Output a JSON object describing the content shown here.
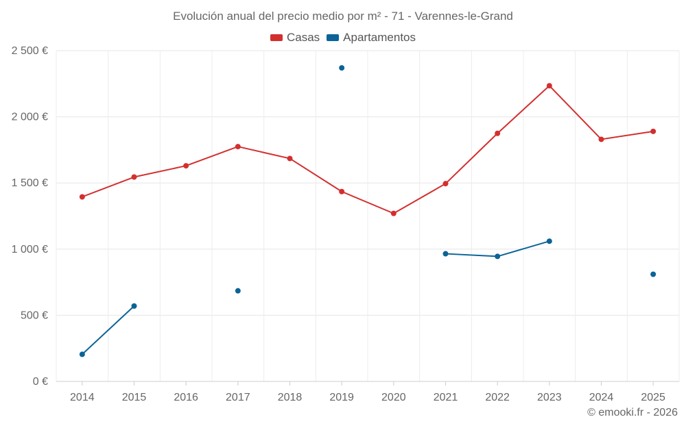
{
  "chart_data": {
    "type": "line",
    "title": "Evolución anual del precio medio por m² - 71 - Varennes-le-Grand",
    "xlabel": "",
    "ylabel": "",
    "categories": [
      "2014",
      "2015",
      "2016",
      "2017",
      "2018",
      "2019",
      "2020",
      "2021",
      "2022",
      "2023",
      "2024",
      "2025"
    ],
    "ylim": [
      0,
      2500
    ],
    "yticks": [
      0,
      500,
      1000,
      1500,
      2000,
      2500
    ],
    "ytick_labels": [
      "0 €",
      "500 €",
      "1 000 €",
      "1 500 €",
      "2 000 €",
      "2 500 €"
    ],
    "grid": true,
    "legend_position": "top-center",
    "series": [
      {
        "name": "Casas",
        "color": "#d32f2f",
        "values": [
          1395,
          1545,
          1630,
          1775,
          1685,
          1435,
          1270,
          1495,
          1875,
          2235,
          1830,
          1890
        ]
      },
      {
        "name": "Apartamentos",
        "color": "#0b6397",
        "values": [
          205,
          570,
          null,
          685,
          null,
          2370,
          null,
          965,
          945,
          1060,
          null,
          810
        ]
      }
    ]
  },
  "credit": "© emooki.fr - 2026"
}
